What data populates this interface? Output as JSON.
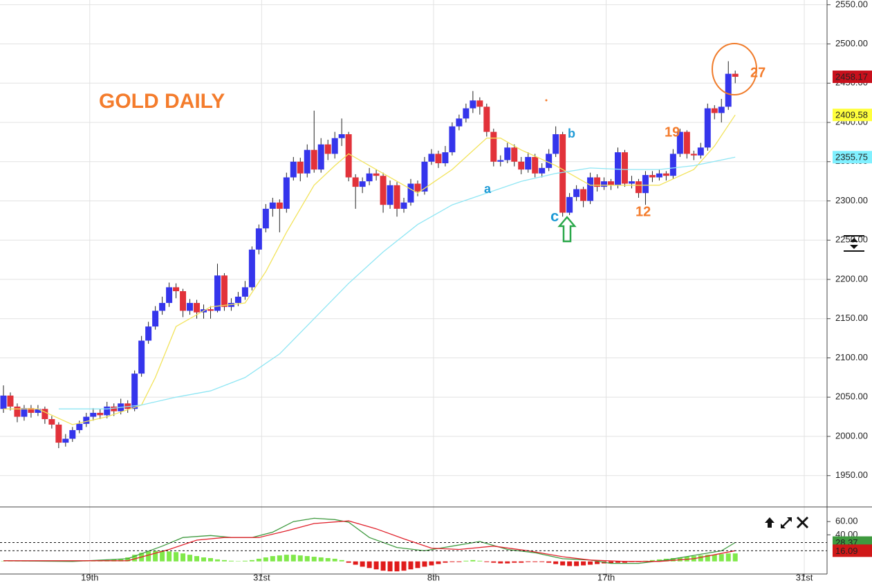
{
  "chart_data": [
    {
      "type": "candlestick",
      "xlim": [
        -0.5,
        119.3
      ],
      "xticks": [
        {
          "value": 12.5,
          "label": "19th"
        },
        {
          "value": 37.4,
          "label": "31st"
        },
        {
          "value": 62.3,
          "label": "8th"
        },
        {
          "value": 87.3,
          "label": "17th"
        },
        {
          "value": 116,
          "label": "31st"
        }
      ],
      "ylim": [
        1911,
        2556
      ],
      "yticks": [
        {
          "value": 2550,
          "label": "2550.00"
        },
        {
          "value": 2500,
          "label": "2500.00"
        },
        {
          "value": 2450,
          "label": "2450.00"
        },
        {
          "value": 2400,
          "label": "2400.00"
        },
        {
          "value": 2350,
          "label": "2350.00"
        },
        {
          "value": 2300,
          "label": "2300.00"
        },
        {
          "value": 2250,
          "label": "2250.00"
        },
        {
          "value": 2200,
          "label": "2200.00"
        },
        {
          "value": 2150,
          "label": "2150.00"
        },
        {
          "value": 2100,
          "label": "2100.00"
        },
        {
          "value": 2050,
          "label": "2050.00"
        },
        {
          "value": 2000,
          "label": "2000.00"
        },
        {
          "value": 1950,
          "label": "1950.00"
        }
      ],
      "grid": true,
      "up_color": "#3535ec",
      "down_color": "#e2323a",
      "last_tag_color": "#c8101c",
      "open": [
        2035,
        2052,
        2038,
        2025,
        2036,
        2030,
        2035,
        2022,
        2015,
        1992,
        1997,
        2008,
        2016,
        2025,
        2030,
        2027,
        2038,
        2032,
        2042,
        2035,
        2080,
        2122,
        2140,
        2160,
        2170,
        2190,
        2185,
        2160,
        2170,
        2158,
        2162,
        2160,
        2205,
        2165,
        2170,
        2178,
        2190,
        2238,
        2265,
        2290,
        2298,
        2290,
        2330,
        2350,
        2335,
        2365,
        2340,
        2372,
        2360,
        2380,
        2385,
        2330,
        2318,
        2325,
        2335,
        2332,
        2295,
        2320,
        2290,
        2298,
        2322,
        2312,
        2350,
        2360,
        2348,
        2362,
        2395,
        2405,
        2418,
        2428,
        2420,
        2388,
        2350,
        2352,
        2368,
        2350,
        2340,
        2356,
        2335,
        2342,
        2360,
        2385,
        2285,
        2305,
        2315,
        2300,
        2330,
        2318,
        2325,
        2320,
        2362,
        2322,
        2325,
        2310,
        2333,
        2330,
        2335,
        2332,
        2360,
        2388,
        2360,
        2358,
        2368,
        2418,
        2412,
        2420,
        2462
      ],
      "high": [
        2065,
        2056,
        2042,
        2040,
        2040,
        2040,
        2038,
        2026,
        2018,
        2003,
        2012,
        2020,
        2030,
        2036,
        2035,
        2044,
        2042,
        2048,
        2046,
        2084,
        2128,
        2146,
        2166,
        2178,
        2196,
        2195,
        2188,
        2175,
        2174,
        2168,
        2166,
        2220,
        2208,
        2176,
        2184,
        2198,
        2242,
        2270,
        2296,
        2304,
        2302,
        2336,
        2356,
        2355,
        2372,
        2415,
        2380,
        2378,
        2388,
        2405,
        2388,
        2334,
        2330,
        2342,
        2340,
        2336,
        2326,
        2324,
        2304,
        2328,
        2326,
        2356,
        2366,
        2364,
        2370,
        2400,
        2410,
        2424,
        2440,
        2432,
        2424,
        2392,
        2358,
        2374,
        2372,
        2356,
        2362,
        2360,
        2348,
        2366,
        2395,
        2388,
        2310,
        2320,
        2318,
        2336,
        2334,
        2330,
        2328,
        2368,
        2365,
        2332,
        2328,
        2338,
        2338,
        2340,
        2338,
        2366,
        2392,
        2390,
        2364,
        2374,
        2424,
        2422,
        2430,
        2478,
        2466
      ],
      "low": [
        2030,
        2033,
        2018,
        2020,
        2024,
        2026,
        2016,
        2010,
        1985,
        1987,
        1993,
        2004,
        2012,
        2020,
        2022,
        2023,
        2026,
        2028,
        2030,
        2032,
        2076,
        2118,
        2136,
        2155,
        2165,
        2176,
        2152,
        2155,
        2150,
        2150,
        2150,
        2158,
        2160,
        2160,
        2166,
        2174,
        2186,
        2232,
        2260,
        2280,
        2260,
        2285,
        2326,
        2325,
        2330,
        2336,
        2336,
        2352,
        2354,
        2370,
        2325,
        2290,
        2310,
        2320,
        2326,
        2285,
        2290,
        2280,
        2285,
        2294,
        2306,
        2308,
        2346,
        2342,
        2344,
        2358,
        2390,
        2400,
        2412,
        2410,
        2382,
        2344,
        2344,
        2348,
        2344,
        2334,
        2336,
        2330,
        2330,
        2338,
        2356,
        2280,
        2282,
        2300,
        2292,
        2296,
        2312,
        2314,
        2314,
        2316,
        2318,
        2316,
        2304,
        2295,
        2324,
        2326,
        2326,
        2328,
        2356,
        2354,
        2352,
        2354,
        2364,
        2404,
        2400,
        2416,
        2450
      ],
      "close": [
        2052,
        2038,
        2025,
        2036,
        2030,
        2035,
        2022,
        2015,
        1992,
        1997,
        2008,
        2016,
        2025,
        2030,
        2027,
        2038,
        2032,
        2042,
        2035,
        2080,
        2122,
        2140,
        2160,
        2170,
        2190,
        2185,
        2160,
        2170,
        2158,
        2162,
        2160,
        2205,
        2165,
        2170,
        2178,
        2190,
        2238,
        2265,
        2290,
        2298,
        2290,
        2330,
        2350,
        2335,
        2365,
        2340,
        2372,
        2360,
        2380,
        2385,
        2330,
        2318,
        2325,
        2335,
        2332,
        2295,
        2320,
        2290,
        2298,
        2322,
        2312,
        2350,
        2360,
        2348,
        2362,
        2395,
        2405,
        2418,
        2428,
        2420,
        2388,
        2350,
        2352,
        2368,
        2350,
        2340,
        2356,
        2335,
        2342,
        2360,
        2385,
        2285,
        2305,
        2315,
        2300,
        2330,
        2318,
        2325,
        2320,
        2362,
        2322,
        2325,
        2310,
        2333,
        2330,
        2335,
        2332,
        2360,
        2388,
        2360,
        2358,
        2368,
        2418,
        2412,
        2420,
        2462,
        2458.17
      ],
      "series": [
        {
          "color": "#f2e35a",
          "tag_color": "#ffff3c",
          "x": [
            0,
            5,
            10,
            15,
            20,
            22,
            25,
            30,
            35,
            38,
            41,
            45,
            48,
            50,
            55,
            60,
            65,
            70,
            72,
            75,
            80,
            82,
            85,
            90,
            95,
            100,
            103,
            106
          ],
          "values": [
            2035,
            2035,
            2015,
            2025,
            2040,
            2075,
            2140,
            2165,
            2170,
            2210,
            2260,
            2320,
            2345,
            2360,
            2335,
            2310,
            2340,
            2380,
            2380,
            2365,
            2345,
            2335,
            2320,
            2320,
            2320,
            2340,
            2370,
            2409.58
          ]
        },
        {
          "color": "#8fe6f4",
          "tag_color": "#80f0ff",
          "x": [
            8,
            15,
            20,
            25,
            30,
            35,
            40,
            45,
            50,
            55,
            60,
            65,
            70,
            75,
            80,
            85,
            90,
            95,
            100,
            106
          ],
          "values": [
            2035,
            2035,
            2040,
            2050,
            2058,
            2075,
            2105,
            2150,
            2195,
            2235,
            2270,
            2295,
            2310,
            2325,
            2335,
            2342,
            2340,
            2340,
            2345,
            2355.75
          ]
        }
      ],
      "annotations": [
        "GOLD DAILY",
        "a",
        "b",
        "c",
        "19",
        "12",
        "27"
      ]
    },
    {
      "type": "line",
      "xlim": [
        -0.5,
        119.3
      ],
      "ylim": [
        -19,
        81
      ],
      "yticks": [
        {
          "value": 60,
          "label": "60.00"
        },
        {
          "value": 40,
          "label": "40.00"
        }
      ],
      "bar_colors": [
        "#80e84a",
        "#e01b1b"
      ],
      "histogram": [
        0.5,
        0.5,
        0.5,
        0.5,
        0.5,
        0.5,
        0.5,
        0.5,
        0.5,
        0.5,
        0.5,
        0.5,
        0.5,
        0.5,
        0.5,
        2,
        3,
        4,
        6,
        10,
        13,
        15,
        16,
        16,
        15,
        14,
        12,
        10,
        8,
        6,
        5,
        3,
        2,
        1,
        0.5,
        1,
        2,
        4,
        6,
        8,
        9,
        10,
        10,
        9,
        8,
        7,
        6,
        5,
        4,
        2,
        -2,
        -5,
        -8,
        -10,
        -12,
        -14,
        -15,
        -15,
        -14,
        -12,
        -10,
        -8,
        -6,
        -4,
        -2,
        -1,
        -1,
        1,
        2,
        1,
        -1,
        -2,
        -3,
        -3,
        -2,
        -2,
        -1,
        -1,
        -1,
        -2,
        -4,
        -6,
        -7,
        -7,
        -6,
        -5,
        -4,
        -3,
        -3,
        -2,
        -2,
        -1,
        -1,
        1,
        2,
        3,
        4,
        5,
        6,
        7,
        8,
        9,
        10,
        10,
        11,
        12,
        12
      ],
      "series": [
        {
          "color": "#3f9a3f",
          "tag_color": "#3f9a3f",
          "x": [
            0,
            10,
            18,
            23,
            26,
            30,
            33,
            36,
            39,
            42,
            45,
            48,
            50,
            53,
            57,
            61,
            65,
            69,
            73,
            77,
            81,
            85,
            88,
            92,
            96,
            100,
            104,
            106
          ],
          "values": [
            1,
            0,
            4,
            23,
            36,
            39,
            36,
            36,
            44,
            60,
            65,
            63,
            59,
            36,
            21,
            16,
            23,
            30,
            18,
            13,
            4,
            2,
            -3,
            -3,
            2,
            9,
            16,
            28.37
          ]
        },
        {
          "color": "#e0202a",
          "tag_color": "#d01818",
          "x": [
            0,
            18,
            24,
            28,
            32,
            37,
            41,
            45,
            50,
            54,
            58,
            62,
            66,
            71,
            76,
            81,
            85,
            90,
            95,
            100,
            104,
            106
          ],
          "values": [
            1,
            1,
            18,
            32,
            36,
            36,
            46,
            57,
            61,
            49,
            34,
            20,
            18,
            23,
            16,
            7,
            2,
            0,
            0,
            4,
            12,
            16.09
          ]
        }
      ]
    }
  ]
}
